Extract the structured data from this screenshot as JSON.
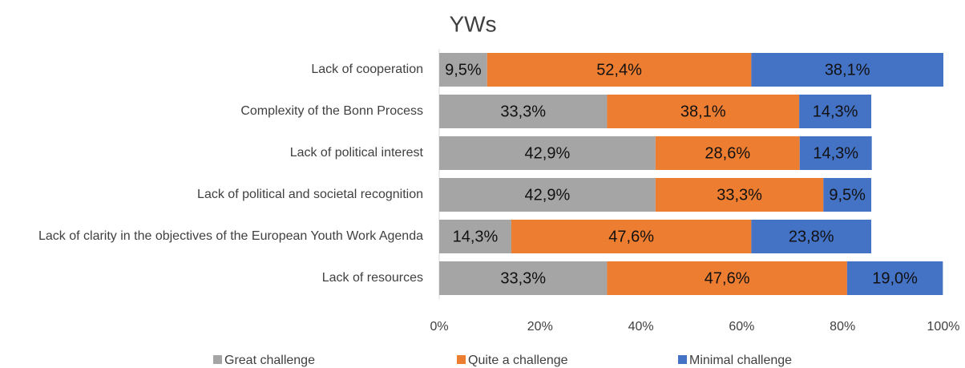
{
  "chart_data": {
    "type": "stacked_barh",
    "title": "YWs",
    "categories": [
      "Lack of cooperation",
      "Complexity of the Bonn Process",
      "Lack of political interest",
      "Lack of political and societal recognition",
      "Lack of clarity in the objectives of the European Youth Work Agenda",
      "Lack of resources"
    ],
    "series": [
      {
        "name": "Great challenge",
        "color": "#a5a5a5",
        "values": [
          9.5,
          33.3,
          42.9,
          42.9,
          14.3,
          33.3
        ],
        "value_labels": [
          "9,5%",
          "33,3%",
          "42,9%",
          "42,9%",
          "14,3%",
          "33,3%"
        ]
      },
      {
        "name": "Quite a challenge",
        "color": "#ed7d31",
        "values": [
          52.4,
          38.1,
          28.6,
          33.3,
          47.6,
          47.6
        ],
        "value_labels": [
          "52,4%",
          "38,1%",
          "28,6%",
          "33,3%",
          "47,6%",
          "47,6%"
        ]
      },
      {
        "name": "Minimal challenge",
        "color": "#4472c4",
        "values": [
          38.1,
          14.3,
          14.3,
          9.5,
          23.8,
          19.0
        ],
        "value_labels": [
          "38,1%",
          "14,3%",
          "14,3%",
          "9,5%",
          "23,8%",
          "19,0%"
        ]
      }
    ],
    "xlim": [
      0,
      100
    ],
    "xticks": [
      {
        "value": 0,
        "label": "0%"
      },
      {
        "value": 20,
        "label": "20%"
      },
      {
        "value": 40,
        "label": "40%"
      },
      {
        "value": 60,
        "label": "60%"
      },
      {
        "value": 80,
        "label": "80%"
      },
      {
        "value": 100,
        "label": "100%"
      }
    ],
    "legend": "bottom"
  }
}
